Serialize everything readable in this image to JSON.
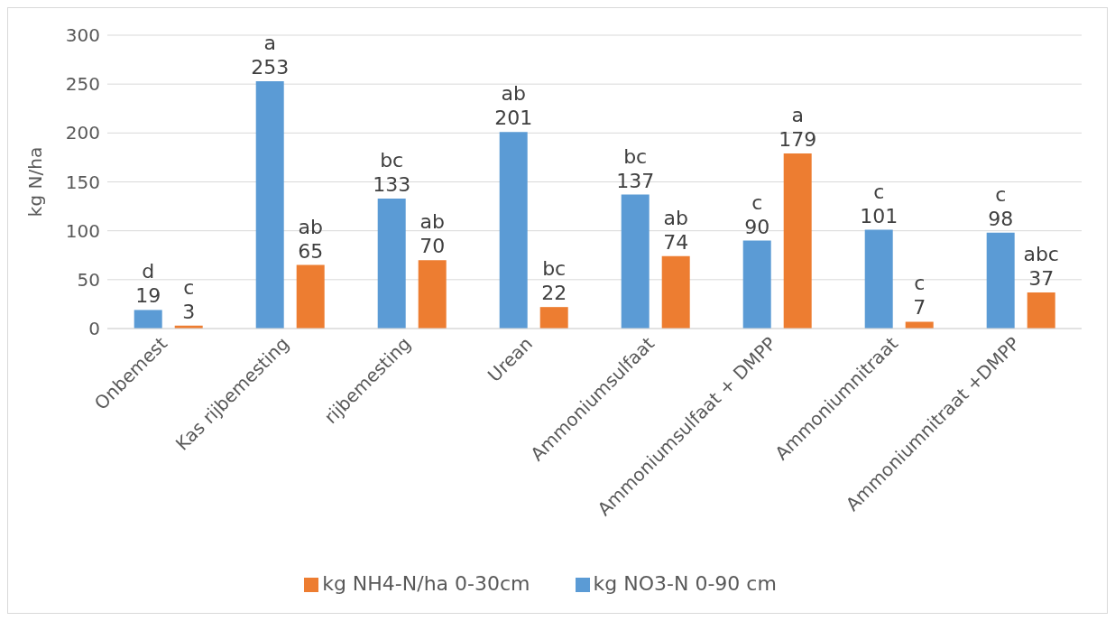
{
  "chart_data": {
    "type": "bar",
    "ylabel": "kg N/ha",
    "categories": [
      "Onbemest",
      "Kas rijbemesting",
      "rijbemesting",
      "Urean",
      "Ammoniumsulfaat",
      "Ammoniumsulfaat + DMPP",
      "Ammoniumnitraat",
      "Ammoniumnitraat +DMPP"
    ],
    "series": [
      {
        "name": "kg NO3-N 0-90 cm",
        "color": "#5b9bd5",
        "values": [
          19,
          253,
          133,
          201,
          137,
          90,
          101,
          98
        ],
        "value_labels": [
          "d\n19",
          "a\n253",
          "bc\n133",
          "ab\n201",
          "bc\n137",
          "c\n90",
          "c\n101",
          "c\n98"
        ]
      },
      {
        "name": "kg NH4-N/ha 0-30cm",
        "color": "#ed7d31",
        "values": [
          3,
          65,
          70,
          22,
          74,
          179,
          7,
          37
        ],
        "value_labels": [
          "c\n3",
          "ab\n65",
          "ab\n70",
          "bc\n22",
          "ab\n74",
          "a\n179",
          "c\n7",
          "abc\n37"
        ]
      }
    ],
    "ylim": [
      0,
      300
    ],
    "yticks": [
      0,
      50,
      100,
      150,
      200,
      250,
      300
    ],
    "grid": "y",
    "legend": "bottom"
  }
}
